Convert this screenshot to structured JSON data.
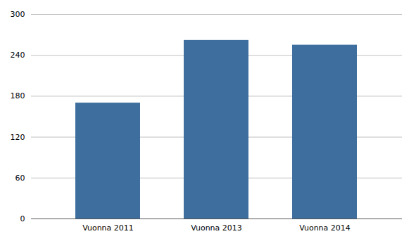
{
  "chart_data": {
    "type": "bar",
    "categories": [
      "Vuonna 2011",
      "Vuonna 2013",
      "Vuonna 2014"
    ],
    "values": [
      170,
      262,
      255
    ],
    "color": "#3d6e9e",
    "ylim": [
      0,
      300
    ],
    "yticks": [
      0,
      60,
      120,
      180,
      240,
      300
    ],
    "grid": true
  }
}
